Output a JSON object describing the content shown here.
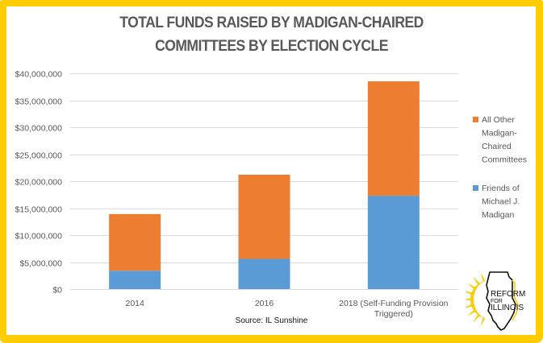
{
  "chart_data": {
    "type": "bar",
    "stacked": true,
    "title": "TOTAL FUNDS RAISED BY MADIGAN-CHAIRED COMMITTEES BY ELECTION CYCLE",
    "title_lines": [
      "TOTAL FUNDS RAISED BY MADIGAN-CHAIRED",
      "COMMITTEES BY ELECTION CYCLE"
    ],
    "xlabel": "",
    "ylabel": "",
    "ylim": [
      0,
      40000000
    ],
    "yticks": [
      0,
      5000000,
      10000000,
      15000000,
      20000000,
      25000000,
      30000000,
      35000000,
      40000000
    ],
    "ytick_labels": [
      "$0",
      "$5,000,000",
      "$10,000,000",
      "$15,000,000",
      "$20,000,000",
      "$25,000,000",
      "$30,000,000",
      "$35,000,000",
      "$40,000,000"
    ],
    "grid": true,
    "categories": [
      "2014",
      "2016",
      "2018 (Self-Funding Provision Triggered)"
    ],
    "category_label_lines": [
      [
        "2014"
      ],
      [
        "2016"
      ],
      [
        "2018 (Self-Funding Provision",
        "Triggered)"
      ]
    ],
    "series": [
      {
        "name": "Friends of Michael J. Madigan",
        "legend_lines": [
          "Friends of",
          "Michael J.",
          "Madigan"
        ],
        "color": "#5B9BD5",
        "values": [
          3400000,
          5600000,
          17300000
        ]
      },
      {
        "name": "All Other Madigan-Chaired Committees",
        "legend_lines": [
          "All Other",
          "Madigan-",
          "Chaired",
          "Committees"
        ],
        "color": "#ED7D31",
        "values": [
          10500000,
          15600000,
          21200000
        ]
      }
    ],
    "legend_position": "right",
    "source": "Source: IL Sunshine"
  },
  "logo": {
    "lines": [
      "REFORM",
      "FOR",
      "ILLINOIS"
    ],
    "sun_color": "#FFCC00"
  },
  "border_color": "#FFCC00"
}
